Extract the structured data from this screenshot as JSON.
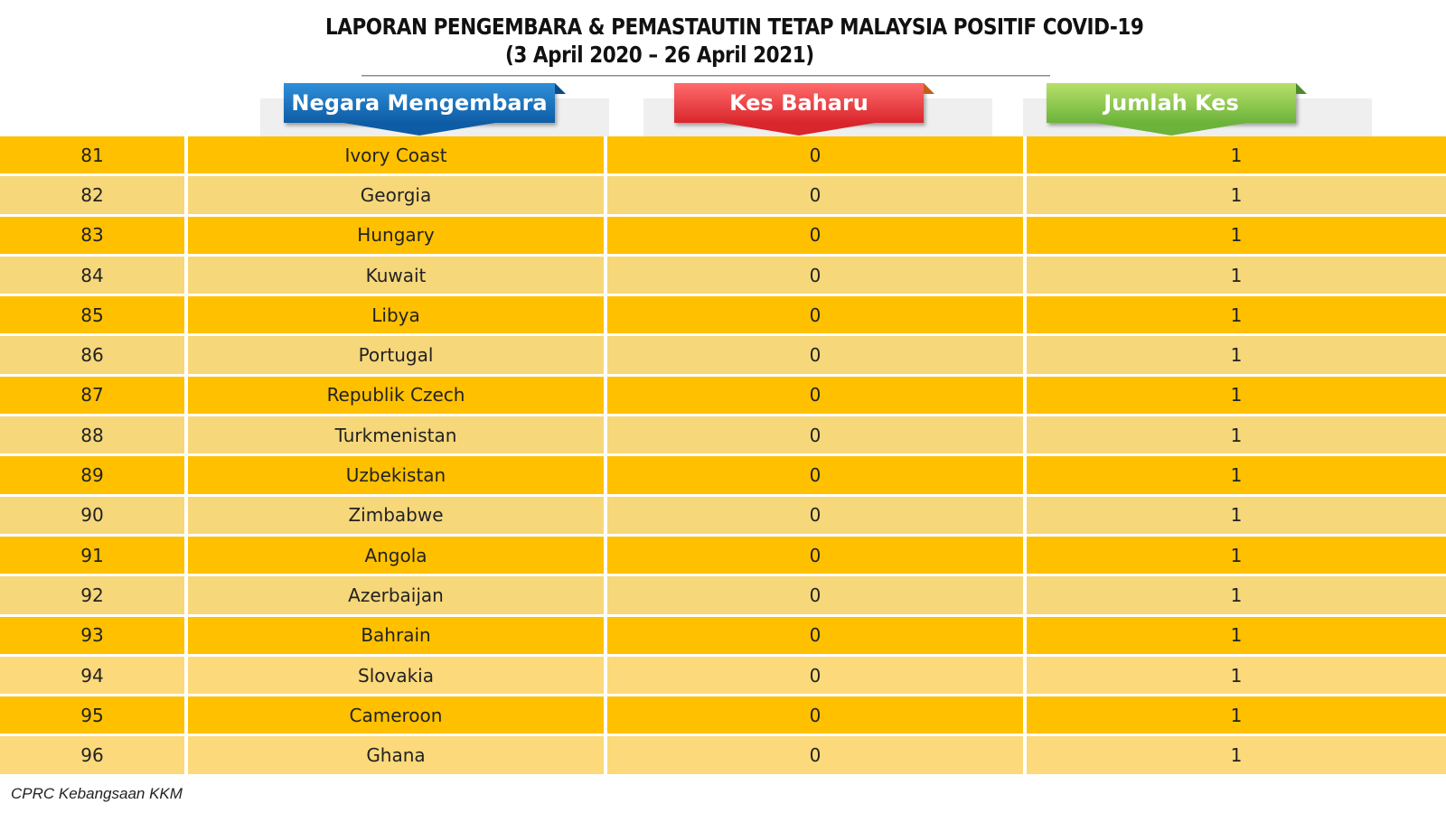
{
  "title": {
    "line1": "LAPORAN PENGEMBARA & PEMASTAUTIN TETAP MALAYSIA POSITIF COVID-19",
    "line2": "(3 April 2020 – 26 April  2021)"
  },
  "headers": {
    "country": "Negara Mengembara",
    "new_cases": "Kes Baharu",
    "total_cases": "Jumlah Kes"
  },
  "colors": {
    "row_primary": "#ffc000",
    "row_alternate": "#f6d77a",
    "header_blue": "#0e5ca6",
    "header_red": "#d9262c",
    "header_green": "#6cb33a"
  },
  "rows": [
    {
      "no": "81",
      "country": "Ivory Coast",
      "new": "0",
      "total": "1"
    },
    {
      "no": "82",
      "country": "Georgia",
      "new": "0",
      "total": "1"
    },
    {
      "no": "83",
      "country": "Hungary",
      "new": "0",
      "total": "1"
    },
    {
      "no": "84",
      "country": "Kuwait",
      "new": "0",
      "total": "1"
    },
    {
      "no": "85",
      "country": "Libya",
      "new": "0",
      "total": "1"
    },
    {
      "no": "86",
      "country": "Portugal",
      "new": "0",
      "total": "1"
    },
    {
      "no": "87",
      "country": "Republik Czech",
      "new": "0",
      "total": "1"
    },
    {
      "no": "88",
      "country": "Turkmenistan",
      "new": "0",
      "total": "1"
    },
    {
      "no": "89",
      "country": "Uzbekistan",
      "new": "0",
      "total": "1"
    },
    {
      "no": "90",
      "country": "Zimbabwe",
      "new": "0",
      "total": "1"
    },
    {
      "no": "91",
      "country": "Angola",
      "new": "0",
      "total": "1"
    },
    {
      "no": "92",
      "country": "Azerbaijan",
      "new": "0",
      "total": "1"
    },
    {
      "no": "93",
      "country": "Bahrain",
      "new": "0",
      "total": "1"
    },
    {
      "no": "94",
      "country": "Slovakia",
      "new": "0",
      "total": "1"
    },
    {
      "no": "95",
      "country": "Cameroon",
      "new": "0",
      "total": "1"
    },
    {
      "no": "96",
      "country": "Ghana",
      "new": "0",
      "total": "1"
    }
  ],
  "footer": "CPRC Kebangsaan KKM"
}
